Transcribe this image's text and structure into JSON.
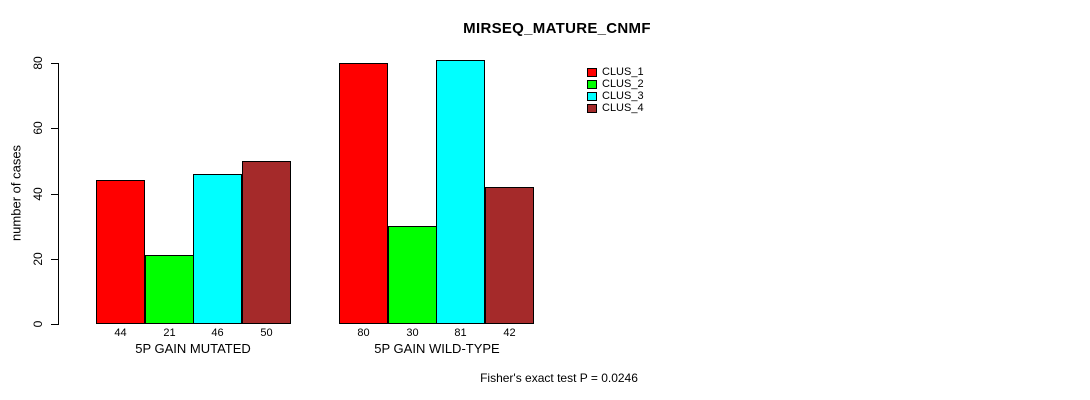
{
  "chart_data": {
    "type": "bar",
    "title": "MIRSEQ_MATURE_CNMF",
    "ylabel": "number of cases",
    "xlabel": "",
    "ylim": [
      0,
      80
    ],
    "yticks": [
      0,
      20,
      40,
      60,
      80
    ],
    "grid": false,
    "legend_position": "top-right",
    "categories": [
      "5P GAIN MUTATED",
      "5P GAIN WILD-TYPE"
    ],
    "series": [
      {
        "name": "CLUS_1",
        "color": "#FF0000",
        "values": [
          44,
          80
        ]
      },
      {
        "name": "CLUS_2",
        "color": "#00FF00",
        "values": [
          21,
          30
        ]
      },
      {
        "name": "CLUS_3",
        "color": "#00FFFF",
        "values": [
          46,
          81
        ]
      },
      {
        "name": "CLUS_4",
        "color": "#A52A2A",
        "values": [
          50,
          42
        ]
      }
    ],
    "bar_value_labels": [
      [
        44,
        21,
        46,
        50
      ],
      [
        80,
        30,
        81,
        42
      ]
    ],
    "annotation": "Fisher's exact test P = 0.0246"
  }
}
